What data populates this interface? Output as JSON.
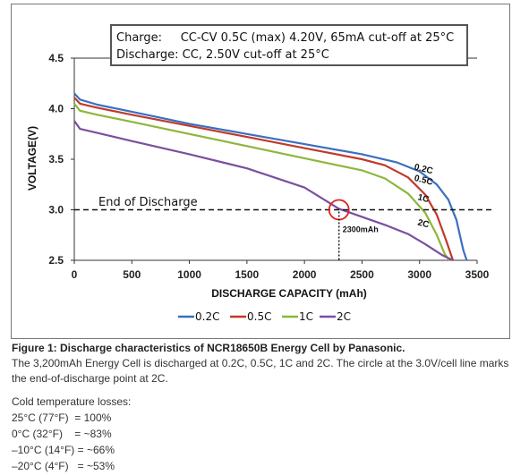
{
  "chart_data": {
    "type": "line",
    "title": "",
    "xlabel": "DISCHARGE CAPACITY (mAh)",
    "ylabel": "VOLTAGE(V)",
    "xlim": [
      0,
      3500
    ],
    "ylim": [
      2.5,
      4.5
    ],
    "x_ticks": [
      "0",
      "500",
      "1000",
      "1500",
      "2000",
      "2500",
      "3000",
      "3500"
    ],
    "y_ticks": [
      "2.5",
      "3.0",
      "3.5",
      "4.0",
      "4.5"
    ],
    "grid": false,
    "legend_position": "bottom",
    "note": {
      "line1": "Charge:     CC-CV 0.5C (max) 4.20V, 65mA cut-off at 25°C",
      "line2": "Discharge: CC, 2.50V cut-off at 25°C"
    },
    "end_of_discharge": {
      "label": "End of Discharge",
      "voltage": 3.0
    },
    "marker": {
      "x": 2300,
      "y": 3.0,
      "label": "2300mAh"
    },
    "series": [
      {
        "name": "0.2C",
        "color": "#3a6fc0",
        "points": [
          [
            0,
            4.15
          ],
          [
            50,
            4.09
          ],
          [
            200,
            4.04
          ],
          [
            500,
            3.97
          ],
          [
            1000,
            3.85
          ],
          [
            1500,
            3.75
          ],
          [
            2000,
            3.65
          ],
          [
            2500,
            3.55
          ],
          [
            2800,
            3.47
          ],
          [
            3000,
            3.38
          ],
          [
            3150,
            3.25
          ],
          [
            3250,
            3.1
          ],
          [
            3320,
            2.9
          ],
          [
            3380,
            2.6
          ],
          [
            3410,
            2.5
          ]
        ]
      },
      {
        "name": "0.5C",
        "color": "#c0392b",
        "points": [
          [
            0,
            4.11
          ],
          [
            50,
            4.05
          ],
          [
            200,
            4.01
          ],
          [
            500,
            3.94
          ],
          [
            1000,
            3.83
          ],
          [
            1500,
            3.72
          ],
          [
            2000,
            3.61
          ],
          [
            2500,
            3.5
          ],
          [
            2700,
            3.44
          ],
          [
            2900,
            3.32
          ],
          [
            3050,
            3.15
          ],
          [
            3150,
            2.95
          ],
          [
            3230,
            2.7
          ],
          [
            3290,
            2.5
          ]
        ]
      },
      {
        "name": "1C",
        "color": "#8db63c",
        "points": [
          [
            0,
            4.05
          ],
          [
            50,
            3.98
          ],
          [
            200,
            3.94
          ],
          [
            500,
            3.87
          ],
          [
            1000,
            3.75
          ],
          [
            1500,
            3.63
          ],
          [
            2000,
            3.51
          ],
          [
            2500,
            3.39
          ],
          [
            2700,
            3.31
          ],
          [
            2900,
            3.16
          ],
          [
            3050,
            2.97
          ],
          [
            3150,
            2.75
          ],
          [
            3220,
            2.56
          ],
          [
            3260,
            2.5
          ]
        ]
      },
      {
        "name": "2C",
        "color": "#7b4fa0",
        "points": [
          [
            0,
            3.88
          ],
          [
            50,
            3.8
          ],
          [
            200,
            3.76
          ],
          [
            500,
            3.68
          ],
          [
            1000,
            3.55
          ],
          [
            1500,
            3.41
          ],
          [
            2000,
            3.22
          ],
          [
            2300,
            3.01
          ],
          [
            2500,
            2.93
          ],
          [
            2700,
            2.85
          ],
          [
            2900,
            2.76
          ],
          [
            3050,
            2.66
          ],
          [
            3200,
            2.55
          ],
          [
            3290,
            2.5
          ]
        ]
      }
    ]
  },
  "caption": {
    "title": "Figure 1: Discharge characteristics of NCR18650B Energy Cell by Panasonic.",
    "body": "The 3,200mAh Energy Cell is discharged at 0.2C, 0.5C, 1C and 2C. The circle at the 3.0V/cell line marks the end-of-discharge point at 2C."
  },
  "cold_losses": {
    "heading": "Cold temperature losses:",
    "rows": [
      "25°C (77°F)  = 100%",
      "0°C (32°F)    = ~83%",
      "–10°C (14°F) = ~66%",
      "–20°C (4°F)   = ~53%"
    ]
  }
}
